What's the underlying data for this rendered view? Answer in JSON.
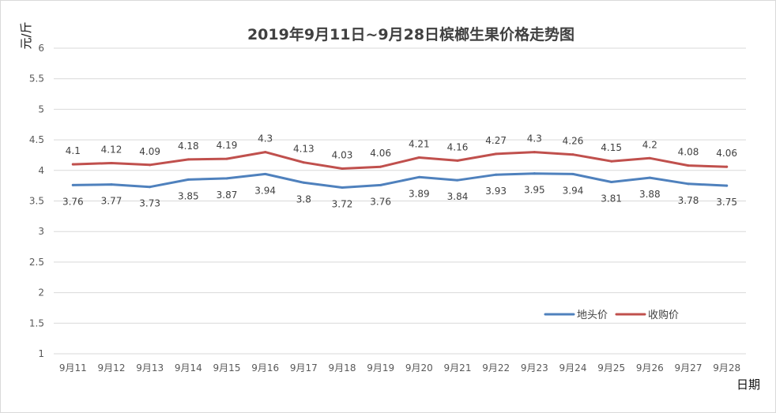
{
  "chart_data": {
    "type": "line",
    "title": "2019年9月11日~9月28日槟榔生果价格走势图",
    "ylabel": "元/斤",
    "xlabel": "日期",
    "ylim": [
      1,
      6
    ],
    "yticks": [
      "1",
      "1.5",
      "2",
      "2.5",
      "3",
      "3.5",
      "4",
      "4.5",
      "5",
      "5.5",
      "6"
    ],
    "grid": true,
    "legend_position": "bottom-right",
    "categories": [
      "9月11",
      "9月12",
      "9月13",
      "9月14",
      "9月15",
      "9月16",
      "9月17",
      "9月18",
      "9月19",
      "9月20",
      "9月21",
      "9月22",
      "9月23",
      "9月24",
      "9月25",
      "9月26",
      "9月27",
      "9月28"
    ],
    "series": [
      {
        "name": "地头价",
        "color": "#4f81bd",
        "values": [
          3.76,
          3.77,
          3.73,
          3.85,
          3.87,
          3.94,
          3.8,
          3.72,
          3.76,
          3.89,
          3.84,
          3.93,
          3.95,
          3.94,
          3.81,
          3.88,
          3.78,
          3.75
        ],
        "labels": [
          "3.76",
          "3.77",
          "3.73",
          "3.85",
          "3.87",
          "3.94",
          "3.8",
          "3.72",
          "3.76",
          "3.89",
          "3.84",
          "3.93",
          "3.95",
          "3.94",
          "3.81",
          "3.88",
          "3.78",
          "3.75"
        ]
      },
      {
        "name": "收购价",
        "color": "#c0504d",
        "values": [
          4.1,
          4.12,
          4.09,
          4.18,
          4.19,
          4.3,
          4.13,
          4.03,
          4.06,
          4.21,
          4.16,
          4.27,
          4.3,
          4.26,
          4.15,
          4.2,
          4.08,
          4.06
        ],
        "labels": [
          "4.1",
          "4.12",
          "4.09",
          "4.18",
          "4.19",
          "4.3",
          "4.13",
          "4.03",
          "4.06",
          "4.21",
          "4.16",
          "4.27",
          "4.3",
          "4.26",
          "4.15",
          "4.2",
          "4.08",
          "4.06"
        ]
      }
    ]
  }
}
